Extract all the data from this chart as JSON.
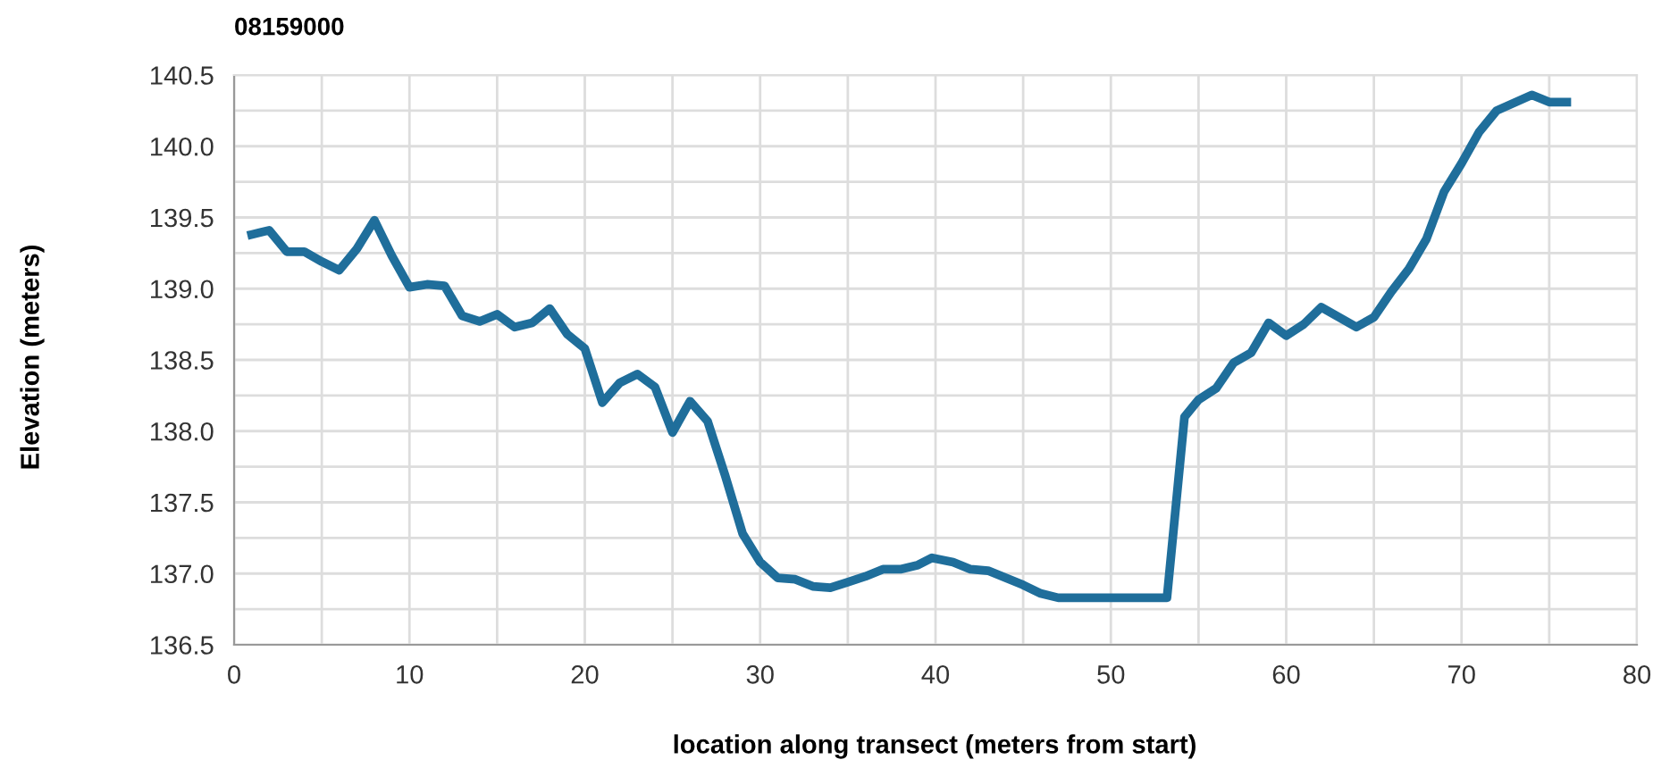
{
  "chart_data": {
    "type": "line",
    "title": "08159000",
    "xlabel": "location along transect (meters from start)",
    "ylabel": "Elevation (meters)",
    "x": [
      1,
      2,
      3,
      4,
      5,
      6,
      7,
      8,
      9,
      10,
      11,
      12,
      13,
      14,
      15,
      16,
      17,
      18,
      19,
      20,
      21,
      22,
      23,
      24,
      25,
      26,
      27,
      28,
      29,
      30,
      31,
      32,
      33,
      34,
      35,
      36,
      37,
      38,
      39,
      39.8,
      41,
      42,
      43,
      44,
      45,
      46,
      47,
      48,
      50,
      52,
      53.2,
      54.2,
      55,
      56,
      57,
      58,
      59,
      60,
      61,
      62,
      64,
      65,
      66,
      67,
      68,
      69,
      70,
      71,
      72,
      74,
      75,
      76
    ],
    "series": [
      {
        "color": "#1f6e9b",
        "values": [
          139.38,
          139.41,
          139.26,
          139.26,
          139.19,
          139.13,
          139.28,
          139.48,
          139.23,
          139.01,
          139.03,
          139.02,
          138.81,
          138.77,
          138.82,
          138.73,
          138.76,
          138.86,
          138.68,
          138.58,
          138.2,
          138.34,
          138.4,
          138.31,
          137.99,
          138.21,
          138.07,
          137.69,
          137.28,
          137.08,
          136.97,
          136.96,
          136.91,
          136.9,
          136.94,
          136.98,
          137.03,
          137.03,
          137.06,
          137.11,
          137.08,
          137.03,
          137.02,
          136.97,
          136.92,
          136.86,
          136.83,
          136.83,
          136.83,
          136.83,
          136.83,
          138.1,
          138.22,
          138.3,
          138.48,
          138.55,
          138.76,
          138.67,
          138.75,
          138.87,
          138.73,
          138.8,
          138.98,
          139.14,
          139.35,
          139.68,
          139.88,
          140.1,
          140.25,
          140.36,
          140.31,
          140.31
        ]
      }
    ],
    "xlim": [
      0,
      80
    ],
    "ylim": [
      136.5,
      140.5
    ],
    "xticks": [
      0,
      {
        "value": 5,
        "label": null
      },
      10,
      {
        "value": 15,
        "label": null
      },
      20,
      {
        "value": 25,
        "label": null
      },
      30,
      {
        "value": 35,
        "label": null
      },
      40,
      {
        "value": 45,
        "label": null
      },
      50,
      {
        "value": 55,
        "label": null
      },
      60,
      {
        "value": 65,
        "label": null
      },
      70,
      {
        "value": 75,
        "label": null
      },
      80
    ],
    "yticks": [
      {
        "value": 136.5,
        "label": "136.5"
      },
      {
        "value": 136.75,
        "label": null
      },
      {
        "value": 137.0,
        "label": "137.0"
      },
      {
        "value": 137.25,
        "label": null
      },
      {
        "value": 137.5,
        "label": "137.5"
      },
      {
        "value": 137.75,
        "label": null
      },
      {
        "value": 138.0,
        "label": "138.0"
      },
      {
        "value": 138.25,
        "label": null
      },
      {
        "value": 138.5,
        "label": "138.5"
      },
      {
        "value": 138.75,
        "label": null
      },
      {
        "value": 139.0,
        "label": "139.0"
      },
      {
        "value": 139.25,
        "label": null
      },
      {
        "value": 139.5,
        "label": "139.5"
      },
      {
        "value": 139.75,
        "label": null
      },
      {
        "value": 140.0,
        "label": "140.0"
      },
      {
        "value": 140.25,
        "label": null
      },
      {
        "value": 140.5,
        "label": "140.5"
      }
    ],
    "grid": true,
    "marker": "none",
    "line_style": "solid",
    "legend": false
  }
}
